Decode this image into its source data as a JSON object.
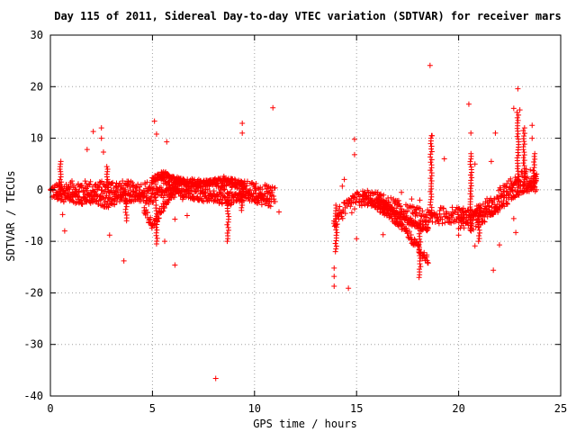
{
  "chart_data": {
    "type": "scatter",
    "title": "Day 115 of 2011, Sidereal Day-to-day VTEC variation (SDTVAR) for receiver mars",
    "xlabel": "GPS time / hours",
    "ylabel": "SDTVAR / TECUs",
    "xlim": [
      0,
      25
    ],
    "ylim": [
      -40,
      30
    ],
    "xticks": [
      0,
      5,
      10,
      15,
      20,
      25
    ],
    "yticks": [
      -40,
      -30,
      -20,
      -10,
      0,
      10,
      20,
      30
    ],
    "grid": true,
    "marker": "+",
    "colors": {
      "series": "#ff0000",
      "grid": "#a0a0a0",
      "axis": "#000000"
    },
    "bands": [
      {
        "x": [
          0.0,
          0.2,
          0.5,
          1.0,
          1.5,
          2.0,
          2.5,
          3.0,
          3.5,
          4.0,
          4.5,
          5.0,
          5.5,
          6.0,
          6.5,
          7.0,
          7.5,
          8.0,
          8.5,
          9.0,
          9.5,
          10.0,
          10.5,
          11.0
        ],
        "y": [
          -0.5,
          -0.3,
          0.0,
          0.2,
          0.3,
          0.3,
          0.2,
          0.4,
          0.3,
          0.1,
          0.0,
          0.5,
          1.5,
          1.2,
          0.8,
          0.6,
          0.5,
          0.6,
          0.7,
          0.5,
          0.3,
          0.0,
          -0.5,
          -1.0
        ],
        "spread": 1.5
      },
      {
        "x": [
          0.3,
          0.8,
          1.5,
          2.2,
          2.8,
          3.5,
          4.2,
          4.8,
          5.3,
          5.8,
          6.3,
          6.8,
          7.3,
          7.8,
          8.3,
          8.8,
          9.3,
          9.8,
          10.3,
          10.8
        ],
        "y": [
          -1.0,
          -1.5,
          -1.8,
          -2.0,
          -2.5,
          -1.5,
          -1.2,
          -2.0,
          -1.0,
          -0.5,
          -0.8,
          -1.0,
          -1.3,
          -1.5,
          -1.8,
          -2.0,
          -1.5,
          -1.2,
          -1.8,
          -2.5
        ],
        "spread": 1.0
      },
      {
        "x": [
          4.6,
          5.0,
          5.3,
          5.7,
          6.0,
          6.3
        ],
        "y": [
          -4.0,
          -7.0,
          -5.0,
          -2.0,
          0.0,
          1.5
        ],
        "spread": 0.8
      },
      {
        "x": [
          5.0,
          5.5,
          6.0,
          6.5,
          7.0,
          7.5,
          8.0,
          8.5,
          9.0,
          9.5
        ],
        "y": [
          2.0,
          3.0,
          2.5,
          1.5,
          1.0,
          1.2,
          1.5,
          1.8,
          1.5,
          1.0
        ],
        "spread": 0.6
      },
      {
        "x": [
          13.9,
          14.2,
          14.6,
          15.0,
          15.5,
          16.0,
          16.5,
          17.0,
          17.5,
          18.0,
          18.5,
          19.0,
          19.5,
          20.0,
          20.5,
          21.0,
          21.5,
          22.0,
          22.5,
          23.0,
          23.5,
          23.8
        ],
        "y": [
          -6.0,
          -4.5,
          -3.5,
          -2.0,
          -1.5,
          -2.0,
          -2.8,
          -3.5,
          -4.5,
          -5.0,
          -5.5,
          -5.0,
          -5.0,
          -4.8,
          -5.5,
          -4.5,
          -3.5,
          -2.5,
          -1.0,
          0.5,
          1.5,
          2.0
        ],
        "spread": 1.6
      },
      {
        "x": [
          15.3,
          15.8,
          16.3,
          16.8,
          17.3,
          17.8,
          18.2,
          18.5
        ],
        "y": [
          -1.5,
          -2.5,
          -4.0,
          -5.5,
          -7.5,
          -10.0,
          -12.5,
          -13.5
        ],
        "spread": 0.8
      },
      {
        "x": [
          16.0,
          16.5,
          17.0,
          17.5,
          18.0,
          18.5
        ],
        "y": [
          -2.0,
          -3.0,
          -5.0,
          -6.0,
          -7.0,
          -7.5
        ],
        "spread": 0.6
      },
      {
        "x": [
          20.0,
          20.6,
          21.2,
          21.8,
          22.3,
          22.8,
          23.3,
          23.8
        ],
        "y": [
          -5.5,
          -6.0,
          -4.5,
          -2.5,
          -1.0,
          1.0,
          2.0,
          1.5
        ],
        "spread": 2.2
      }
    ],
    "spikes": [
      {
        "x": 18.65,
        "y_from": -5,
        "y_to": 10.5
      },
      {
        "x": 18.1,
        "y_from": -17,
        "y_to": -8
      },
      {
        "x": 14.0,
        "y_from": -12,
        "y_to": -3
      },
      {
        "x": 20.6,
        "y_from": -8,
        "y_to": 7
      },
      {
        "x": 21.0,
        "y_from": -10,
        "y_to": -3
      },
      {
        "x": 22.9,
        "y_from": 1,
        "y_to": 15
      },
      {
        "x": 23.2,
        "y_from": 1,
        "y_to": 12
      },
      {
        "x": 23.7,
        "y_from": 0,
        "y_to": 7
      },
      {
        "x": 0.5,
        "y_from": 0,
        "y_to": 5.5
      },
      {
        "x": 2.8,
        "y_from": 0,
        "y_to": 4.5
      },
      {
        "x": 3.7,
        "y_from": -6,
        "y_to": 0
      },
      {
        "x": 8.7,
        "y_from": -10,
        "y_to": -2
      },
      {
        "x": 9.4,
        "y_from": -4,
        "y_to": 1
      },
      {
        "x": 5.2,
        "y_from": -10.5,
        "y_to": -3
      }
    ],
    "outliers": [
      {
        "x": 0.6,
        "y": -4.8
      },
      {
        "x": 0.7,
        "y": -8.0
      },
      {
        "x": 1.8,
        "y": 7.8
      },
      {
        "x": 2.1,
        "y": 11.3
      },
      {
        "x": 2.5,
        "y": 12.0
      },
      {
        "x": 2.5,
        "y": 10.0
      },
      {
        "x": 2.6,
        "y": 7.3
      },
      {
        "x": 2.9,
        "y": -8.8
      },
      {
        "x": 3.6,
        "y": -13.8
      },
      {
        "x": 5.1,
        "y": 13.3
      },
      {
        "x": 5.2,
        "y": 10.8
      },
      {
        "x": 5.7,
        "y": 9.3
      },
      {
        "x": 5.6,
        "y": -10.0
      },
      {
        "x": 6.1,
        "y": -14.6
      },
      {
        "x": 6.1,
        "y": -5.7
      },
      {
        "x": 6.7,
        "y": -5.0
      },
      {
        "x": 8.1,
        "y": -36.6
      },
      {
        "x": 8.5,
        "y": 2.6
      },
      {
        "x": 9.4,
        "y": 12.9
      },
      {
        "x": 9.4,
        "y": 11.0
      },
      {
        "x": 10.9,
        "y": 15.9
      },
      {
        "x": 11.2,
        "y": -4.3
      },
      {
        "x": 13.9,
        "y": -15.2
      },
      {
        "x": 13.9,
        "y": -16.8
      },
      {
        "x": 13.9,
        "y": -18.7
      },
      {
        "x": 14.3,
        "y": 0.7
      },
      {
        "x": 14.4,
        "y": 2.0
      },
      {
        "x": 14.6,
        "y": -19.1
      },
      {
        "x": 14.9,
        "y": 9.8
      },
      {
        "x": 14.9,
        "y": 6.8
      },
      {
        "x": 15.0,
        "y": -9.5
      },
      {
        "x": 16.3,
        "y": -8.7
      },
      {
        "x": 17.2,
        "y": -0.5
      },
      {
        "x": 17.7,
        "y": -1.8
      },
      {
        "x": 18.1,
        "y": -2.0
      },
      {
        "x": 18.6,
        "y": 24.1
      },
      {
        "x": 18.7,
        "y": 10.5
      },
      {
        "x": 19.3,
        "y": 6.0
      },
      {
        "x": 19.7,
        "y": -4.3
      },
      {
        "x": 20.0,
        "y": -8.8
      },
      {
        "x": 20.5,
        "y": 16.6
      },
      {
        "x": 20.6,
        "y": 11.0
      },
      {
        "x": 20.8,
        "y": 5.0
      },
      {
        "x": 20.8,
        "y": -10.9
      },
      {
        "x": 21.6,
        "y": 5.5
      },
      {
        "x": 21.7,
        "y": -15.6
      },
      {
        "x": 21.8,
        "y": 11.0
      },
      {
        "x": 22.0,
        "y": -10.7
      },
      {
        "x": 22.7,
        "y": -5.6
      },
      {
        "x": 22.7,
        "y": 15.8
      },
      {
        "x": 22.9,
        "y": 19.6
      },
      {
        "x": 23.0,
        "y": 15.5
      },
      {
        "x": 23.6,
        "y": 12.5
      },
      {
        "x": 23.6,
        "y": 10.0
      },
      {
        "x": 22.8,
        "y": -8.3
      }
    ]
  }
}
